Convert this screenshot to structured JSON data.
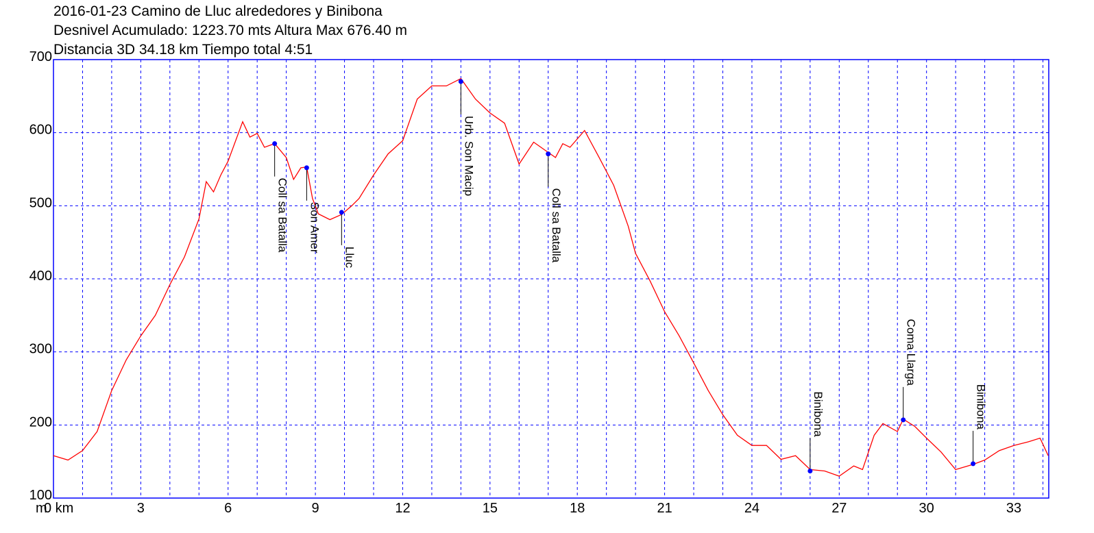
{
  "chart_data": {
    "type": "line",
    "title_lines": [
      "2016-01-23 Camino de Lluc alrededores y Binibona",
      "Desnivel Acumulado: 1223.70 mts  Altura Max 676.40 m",
      "Distancia 3D 34.18 km  Tiempo total 4:51"
    ],
    "y_label": "m",
    "xlim": [
      0,
      34.2
    ],
    "ylim": [
      100,
      700
    ],
    "xticks": [
      {
        "value": 0,
        "label": "0 km"
      },
      3,
      6,
      9,
      12,
      15,
      18,
      21,
      24,
      27,
      30,
      33
    ],
    "yticks": [
      100,
      200,
      300,
      400,
      500,
      600,
      700
    ],
    "x_gridlines": [
      1,
      2,
      3,
      4,
      5,
      6,
      7,
      8,
      9,
      10,
      11,
      12,
      13,
      14,
      15,
      16,
      17,
      18,
      19,
      20,
      21,
      22,
      23,
      24,
      25,
      26,
      27,
      28,
      29,
      30,
      31,
      32,
      33,
      34
    ],
    "grid": true,
    "grid_color": "#0000ff",
    "frame_color": "#0000ff",
    "series": [
      {
        "color": "#ff0000",
        "x": [
          0,
          0.5,
          1.0,
          1.5,
          2.0,
          2.5,
          3.0,
          3.5,
          4.0,
          4.5,
          5.0,
          5.25,
          5.5,
          5.75,
          6.0,
          6.5,
          6.75,
          7.0,
          7.25,
          7.6,
          8.0,
          8.25,
          8.5,
          8.7,
          8.9,
          9.1,
          9.5,
          9.9,
          10.25,
          10.5,
          11.0,
          11.5,
          12.0,
          12.5,
          13.0,
          13.5,
          14.0,
          14.5,
          15.0,
          15.5,
          16.0,
          16.5,
          17.0,
          17.25,
          17.5,
          17.75,
          18.25,
          18.75,
          19.25,
          19.75,
          20.0,
          20.5,
          21.0,
          21.5,
          22.0,
          22.5,
          23.0,
          23.5,
          24.0,
          24.5,
          25.0,
          25.5,
          26.0,
          26.5,
          27.0,
          27.5,
          27.8,
          28.2,
          28.5,
          29.0,
          29.2,
          29.6,
          30.0,
          30.5,
          31.0,
          31.6,
          32.0,
          32.5,
          33.0,
          33.5,
          33.9,
          34.18
        ],
        "values": [
          158,
          152,
          165,
          191,
          247,
          289,
          322,
          350,
          392,
          430,
          482,
          533,
          519,
          542,
          561,
          615,
          594,
          599,
          580,
          585,
          566,
          536,
          552,
          553,
          510,
          489,
          481,
          488,
          500,
          510,
          542,
          571,
          589,
          646,
          664,
          664,
          674,
          646,
          627,
          613,
          557,
          587,
          573,
          566,
          585,
          580,
          603,
          566,
          528,
          472,
          435,
          397,
          355,
          322,
          285,
          247,
          214,
          186,
          172,
          172,
          153,
          158,
          139,
          137,
          130,
          144,
          139,
          186,
          202,
          191,
          208,
          198,
          182,
          163,
          139,
          146,
          152,
          165,
          172,
          177,
          182,
          158
        ]
      }
    ],
    "waypoint_color": "#0000ff",
    "waypoints": [
      {
        "name": "Coll sa Batalla",
        "x": 7.6,
        "y": 585
      },
      {
        "name": "Son Amer",
        "x": 8.7,
        "y": 552
      },
      {
        "name": "Lluc",
        "x": 9.9,
        "y": 491
      },
      {
        "name": "Urb. Son Macip",
        "x": 14.0,
        "y": 670
      },
      {
        "name": "Coll sa Batalla",
        "x": 17.0,
        "y": 571
      },
      {
        "name": "Binibona",
        "x": 26.0,
        "y": 137
      },
      {
        "name": "Coma Llarga",
        "x": 29.2,
        "y": 207
      },
      {
        "name": "Binibona",
        "x": 31.6,
        "y": 147
      }
    ]
  }
}
